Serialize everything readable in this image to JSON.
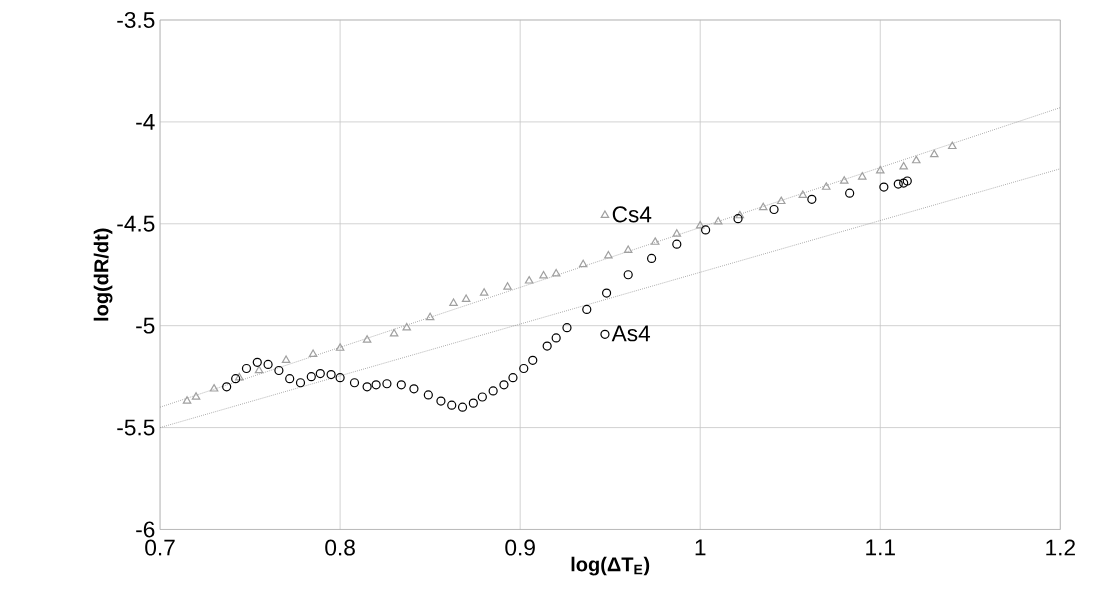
{
  "chart_data": {
    "type": "scatter",
    "xlabel": "log(ΔT$_{E}$)",
    "ylabel": "log(dR/dt)",
    "xlim": [
      0.7,
      1.2
    ],
    "ylim": [
      -6,
      -3.5
    ],
    "xticks": [
      0.7,
      0.8,
      0.9,
      1,
      1.1,
      1.2
    ],
    "yticks": [
      -6,
      -5.5,
      -5,
      -4.5,
      -4,
      -3.5
    ],
    "grid": true,
    "legend": "center",
    "series": [
      {
        "name": "Cs4",
        "color": "#a0a0a0",
        "marker": "triangle",
        "x": [
          0.715,
          0.72,
          0.73,
          0.744,
          0.755,
          0.77,
          0.785,
          0.8,
          0.815,
          0.83,
          0.837,
          0.85,
          0.863,
          0.87,
          0.88,
          0.893,
          0.905,
          0.913,
          0.92,
          0.935,
          0.949,
          0.96,
          0.975,
          0.987,
          1.0,
          1.01,
          1.022,
          1.035,
          1.045,
          1.057,
          1.07,
          1.08,
          1.09,
          1.1,
          1.113,
          1.12,
          1.13,
          1.14
        ],
        "values": [
          -5.37,
          -5.35,
          -5.31,
          -5.255,
          -5.22,
          -5.17,
          -5.14,
          -5.11,
          -5.07,
          -5.04,
          -5.01,
          -4.96,
          -4.89,
          -4.87,
          -4.84,
          -4.81,
          -4.78,
          -4.755,
          -4.745,
          -4.7,
          -4.657,
          -4.63,
          -4.59,
          -4.55,
          -4.51,
          -4.49,
          -4.46,
          -4.42,
          -4.39,
          -4.36,
          -4.32,
          -4.29,
          -4.27,
          -4.24,
          -4.22,
          -4.19,
          -4.16,
          -4.12
        ]
      },
      {
        "name": "As4",
        "color": "#000000",
        "marker": "circle",
        "x": [
          0.737,
          0.742,
          0.748,
          0.754,
          0.76,
          0.766,
          0.772,
          0.778,
          0.784,
          0.789,
          0.795,
          0.8,
          0.808,
          0.815,
          0.82,
          0.826,
          0.834,
          0.841,
          0.849,
          0.856,
          0.862,
          0.868,
          0.874,
          0.879,
          0.885,
          0.891,
          0.896,
          0.902,
          0.907,
          0.915,
          0.92,
          0.926,
          0.937,
          0.948,
          0.96,
          0.973,
          0.987,
          1.003,
          1.021,
          1.041,
          1.062,
          1.083,
          1.102,
          1.11,
          1.113,
          1.115
        ],
        "values": [
          -5.3,
          -5.26,
          -5.21,
          -5.18,
          -5.19,
          -5.22,
          -5.26,
          -5.28,
          -5.25,
          -5.235,
          -5.24,
          -5.255,
          -5.28,
          -5.3,
          -5.29,
          -5.285,
          -5.29,
          -5.31,
          -5.34,
          -5.37,
          -5.39,
          -5.4,
          -5.38,
          -5.35,
          -5.32,
          -5.29,
          -5.255,
          -5.21,
          -5.17,
          -5.1,
          -5.06,
          -5.01,
          -4.92,
          -4.84,
          -4.75,
          -4.67,
          -4.6,
          -4.53,
          -4.475,
          -4.43,
          -4.38,
          -4.35,
          -4.32,
          -4.305,
          -4.3,
          -4.29
        ]
      },
      {
        "type": "line",
        "color": "#808080",
        "line_style": "dotted",
        "marker": "none",
        "x": [
          0.7,
          1.2
        ],
        "values": [
          -5.4,
          -3.93
        ]
      },
      {
        "type": "line",
        "color": "#808080",
        "line_style": "dotted",
        "marker": "none",
        "x": [
          0.7,
          1.2
        ],
        "values": [
          -5.5,
          -4.23
        ]
      }
    ]
  }
}
